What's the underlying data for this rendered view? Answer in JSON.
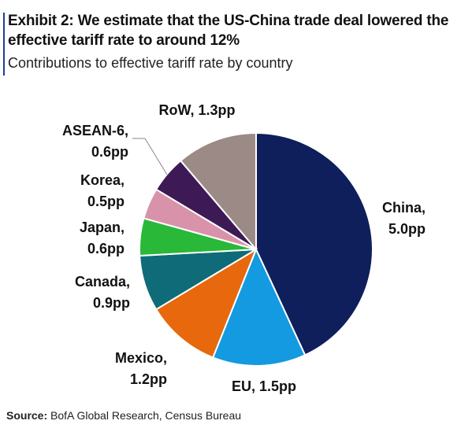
{
  "header": {
    "title": "Exhibit 2: We estimate that the US-China trade deal lowered the effective tariff rate to around 12%",
    "subtitle": "Contributions to effective tariff rate by country"
  },
  "source": {
    "label": "Source:",
    "text": "BofA Global Research, Census Bureau"
  },
  "chart_data": {
    "type": "pie",
    "title": "Exhibit 2: We estimate that the US-China trade deal lowered the effective tariff rate to around 12%",
    "subtitle": "Contributions to effective tariff rate by country",
    "unit": "pp",
    "slices": [
      {
        "name": "China",
        "value": 5.0,
        "label": [
          "China,",
          "5.0pp"
        ],
        "color": "#0e1f5b"
      },
      {
        "name": "EU",
        "value": 1.5,
        "label": [
          "EU, 1.5pp"
        ],
        "color": "#139ae0"
      },
      {
        "name": "Mexico",
        "value": 1.2,
        "label": [
          "Mexico,",
          "1.2pp"
        ],
        "color": "#e7680d"
      },
      {
        "name": "Canada",
        "value": 0.9,
        "label": [
          "Canada,",
          "0.9pp"
        ],
        "color": "#106b78"
      },
      {
        "name": "Japan",
        "value": 0.6,
        "label": [
          "Japan,",
          "0.6pp"
        ],
        "color": "#29b838"
      },
      {
        "name": "Korea",
        "value": 0.5,
        "label": [
          "Korea,",
          "0.5pp"
        ],
        "color": "#d893aa"
      },
      {
        "name": "ASEAN-6",
        "value": 0.6,
        "label": [
          "ASEAN-6,",
          "0.6pp"
        ],
        "color": "#3d1a55"
      },
      {
        "name": "RoW",
        "value": 1.3,
        "label": [
          "RoW, 1.3pp"
        ],
        "color": "#9b8a86"
      }
    ]
  }
}
